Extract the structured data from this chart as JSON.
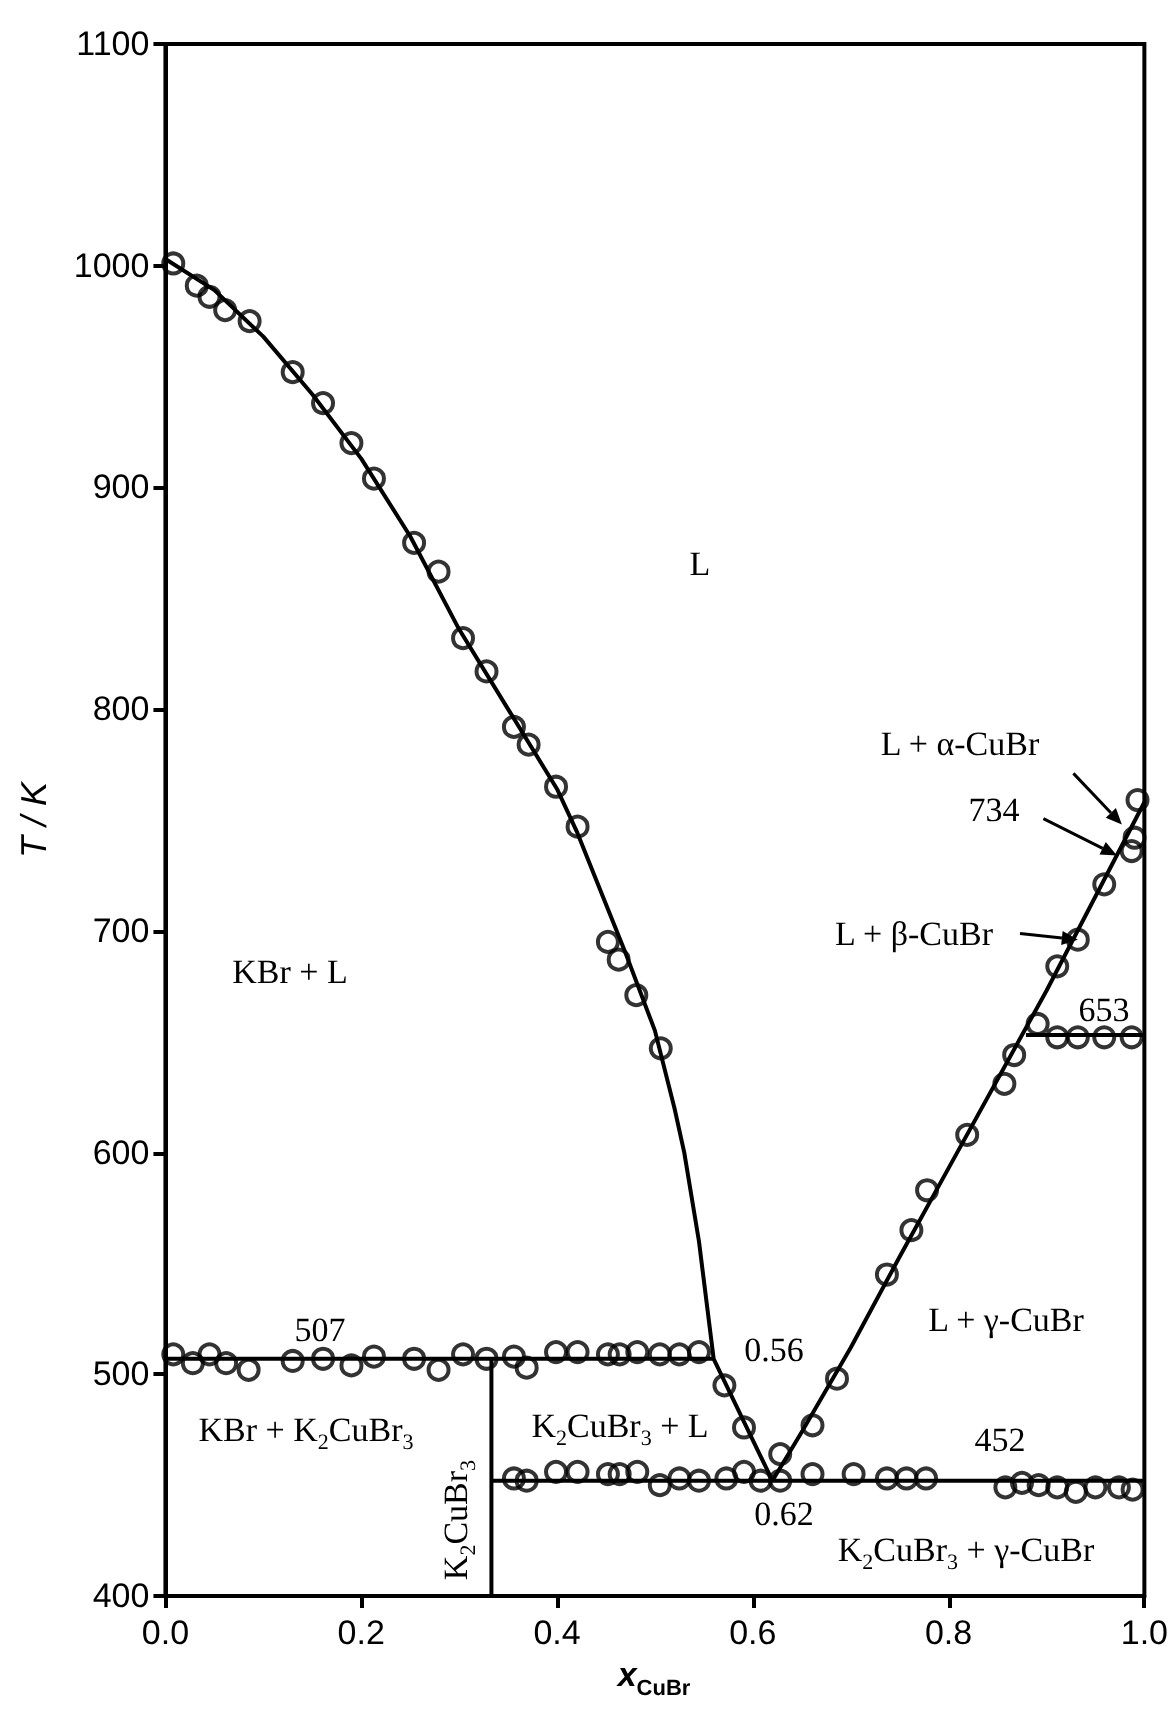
{
  "chart_data": {
    "type": "scatter",
    "xlabel": "x$_{CuBr}$",
    "ylabel": "T / K",
    "xlim": [
      0,
      1
    ],
    "ylim": [
      400,
      1100
    ],
    "xticks": [
      {
        "value": 0,
        "label": "0.0"
      },
      {
        "value": 0.2,
        "label": "0.2"
      },
      {
        "value": 0.4,
        "label": "0.4"
      },
      {
        "value": 0.6,
        "label": "0.6"
      },
      {
        "value": 0.8,
        "label": "0.8"
      },
      {
        "value": 1,
        "label": "1.0"
      }
    ],
    "yticks": [
      400,
      500,
      600,
      700,
      800,
      900,
      1000,
      1100
    ],
    "marker": "circle",
    "series": [
      {
        "color": "#000000",
        "x": [
          0.008,
          0.032,
          0.045,
          0.061,
          0.086,
          0.13,
          0.161,
          0.19,
          0.213,
          0.254,
          0.279,
          0.304,
          0.328,
          0.356,
          0.371,
          0.399,
          0.421,
          0.452,
          0.463,
          0.481,
          0.506,
          0.571,
          0.591
        ],
        "values": [
          1001,
          991,
          986,
          980,
          975,
          952,
          938,
          920,
          904,
          875,
          862,
          832,
          817,
          792,
          784,
          765,
          747,
          695,
          687,
          671,
          647,
          495,
          476
        ]
      },
      {
        "color": "#000000",
        "x": [
          0.628,
          0.661,
          0.686,
          0.737,
          0.762,
          0.778,
          0.819,
          0.857,
          0.867,
          0.891,
          0.911,
          0.932,
          0.959,
          0.987,
          0.99,
          0.993
        ],
        "values": [
          464,
          477,
          498,
          545,
          565,
          583,
          608,
          631,
          644,
          658,
          684,
          696,
          721,
          736,
          742,
          759
        ]
      },
      {
        "color": "#000000",
        "x": [
          0.008,
          0.028,
          0.045,
          0.062,
          0.085,
          0.13,
          0.161,
          0.19,
          0.213,
          0.254,
          0.279,
          0.304,
          0.328,
          0.356,
          0.369,
          0.399,
          0.421,
          0.452,
          0.464,
          0.482,
          0.505,
          0.525,
          0.545
        ],
        "values": [
          509,
          505,
          509,
          505,
          502,
          506,
          507,
          504,
          508,
          507,
          502,
          509,
          507,
          508,
          503,
          510,
          510,
          509,
          509,
          510,
          509,
          509,
          510
        ]
      },
      {
        "color": "#000000",
        "x": [
          0.356,
          0.369,
          0.399,
          0.421,
          0.452,
          0.464,
          0.482,
          0.505,
          0.525,
          0.545,
          0.573,
          0.591,
          0.608,
          0.628,
          0.661,
          0.703,
          0.737,
          0.757,
          0.777,
          0.858,
          0.875,
          0.892,
          0.911,
          0.93,
          0.95,
          0.974,
          0.988
        ],
        "values": [
          453,
          452,
          456,
          456,
          455,
          455,
          456,
          450,
          453,
          452,
          453,
          456,
          452,
          452,
          455,
          455,
          453,
          453,
          453,
          449,
          451,
          450,
          449,
          447,
          449,
          449,
          448
        ]
      },
      {
        "color": "#000000",
        "x": [
          0.911,
          0.932,
          0.959,
          0.987
        ],
        "values": [
          652,
          652,
          652,
          652
        ]
      },
      {
        "type": "line",
        "color": "#000000",
        "marker": "none",
        "x": [
          0,
          0.05,
          0.1,
          0.15,
          0.2,
          0.25,
          0.3,
          0.35,
          0.4,
          0.42,
          0.45,
          0.47,
          0.5,
          0.52,
          0.53,
          0.545,
          0.56,
          0.62
        ],
        "values": [
          1003,
          989,
          968,
          942,
          913,
          878,
          836,
          800,
          764,
          745,
          712,
          690,
          655,
          620,
          600,
          560,
          507,
          452
        ]
      },
      {
        "type": "line",
        "color": "#000000",
        "marker": "none",
        "x": [
          0.62,
          0.65,
          0.7,
          0.75,
          0.8,
          0.9,
          1.0
        ],
        "values": [
          452,
          474,
          512,
          553,
          593,
          673,
          758
        ]
      },
      {
        "type": "line",
        "color": "#000000",
        "marker": "none",
        "x": [
          0,
          0.56
        ],
        "values": [
          507,
          507
        ]
      },
      {
        "type": "line",
        "color": "#000000",
        "marker": "none",
        "x": [
          0.333,
          1.0
        ],
        "values": [
          452,
          452
        ]
      },
      {
        "type": "line",
        "color": "#000000",
        "marker": "none",
        "x": [
          0.333,
          0.333
        ],
        "values": [
          400,
          507
        ]
      },
      {
        "type": "line",
        "color": "#000000",
        "marker": "none",
        "x": [
          0.879,
          1.0
        ],
        "values": [
          653,
          653
        ]
      }
    ],
    "annotations": [
      "L",
      "KBr + L",
      "507",
      "0.56",
      "L + γ-CuBr",
      "0.62",
      "452",
      "K$_{2}$CuBr$_{3}$ + γ-CuBr",
      "KBr + K$_{2}$CuBr$_{3}$",
      "K$_{2}$CuBr$_{3}$ + L",
      "K$_{2}$CuBr$_{3}$",
      "653",
      {
        "text": "L + α-CuBr",
        "x": 0.977,
        "y": 748
      },
      {
        "text": "734",
        "x": 0.972,
        "y": 734
      },
      {
        "text": "L + β-CuBr",
        "x": 0.932,
        "y": 696
      }
    ]
  }
}
